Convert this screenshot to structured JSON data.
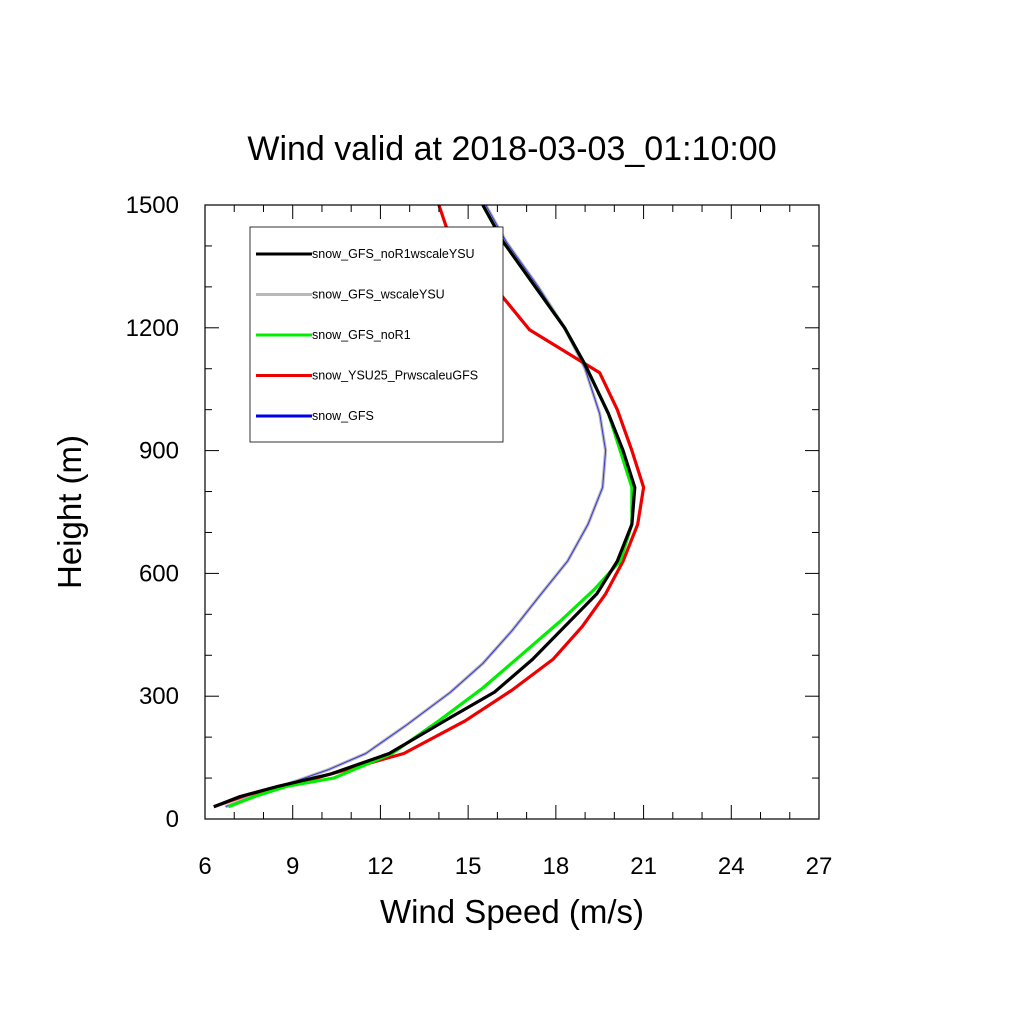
{
  "chart_data": {
    "type": "line",
    "title": "Wind valid at 2018-03-03_01:10:00",
    "xlabel": "Wind Speed (m/s)",
    "ylabel": "Height (m)",
    "xlim": [
      6,
      27
    ],
    "ylim": [
      0,
      1500
    ],
    "xticks": [
      "6",
      "9",
      "12",
      "15",
      "18",
      "21",
      "24",
      "27"
    ],
    "yticks": [
      "0",
      "300",
      "600",
      "900",
      "1200",
      "1500"
    ],
    "legend_position": "top-left",
    "grid": false,
    "series": [
      {
        "name": "snow_GFS_noR1wscaleYSU",
        "color": "#000000",
        "points": [
          [
            6.3,
            30
          ],
          [
            7.2,
            55
          ],
          [
            8.5,
            80
          ],
          [
            10.3,
            110
          ],
          [
            12.3,
            160
          ],
          [
            14.2,
            240
          ],
          [
            15.9,
            310
          ],
          [
            17.2,
            390
          ],
          [
            18.3,
            470
          ],
          [
            19.4,
            550
          ],
          [
            20.1,
            630
          ],
          [
            20.6,
            720
          ],
          [
            20.7,
            810
          ],
          [
            20.3,
            900
          ],
          [
            19.8,
            990
          ],
          [
            19.0,
            1110
          ],
          [
            18.3,
            1200
          ],
          [
            17.3,
            1300
          ],
          [
            16.2,
            1410
          ],
          [
            15.5,
            1500
          ]
        ]
      },
      {
        "name": "snow_GFS_wscaleYSU",
        "color": "#b8b8b8",
        "points": [
          [
            6.7,
            30
          ],
          [
            7.6,
            55
          ],
          [
            9.0,
            90
          ],
          [
            10.2,
            120
          ],
          [
            11.5,
            160
          ],
          [
            12.9,
            230
          ],
          [
            14.4,
            310
          ],
          [
            15.5,
            380
          ],
          [
            16.5,
            460
          ],
          [
            17.5,
            550
          ],
          [
            18.4,
            630
          ],
          [
            19.1,
            720
          ],
          [
            19.6,
            810
          ],
          [
            19.7,
            900
          ],
          [
            19.5,
            990
          ],
          [
            19.0,
            1100
          ],
          [
            18.3,
            1200
          ],
          [
            17.4,
            1300
          ],
          [
            16.3,
            1410
          ],
          [
            15.6,
            1500
          ]
        ]
      },
      {
        "name": "snow_GFS_noR1",
        "color": "#00ee00",
        "points": [
          [
            6.8,
            30
          ],
          [
            7.7,
            55
          ],
          [
            8.8,
            80
          ],
          [
            10.4,
            100
          ],
          [
            12.4,
            160
          ],
          [
            14.0,
            240
          ],
          [
            15.5,
            320
          ],
          [
            16.8,
            400
          ],
          [
            18.1,
            480
          ],
          [
            19.3,
            560
          ],
          [
            20.2,
            630
          ],
          [
            20.6,
            720
          ],
          [
            20.6,
            810
          ],
          [
            20.2,
            900
          ],
          [
            19.8,
            990
          ],
          [
            19.0,
            1110
          ],
          [
            18.3,
            1200
          ],
          [
            17.3,
            1300
          ],
          [
            16.2,
            1410
          ],
          [
            15.5,
            1500
          ]
        ]
      },
      {
        "name": "snow_YSU25_PrwscaleuGFS",
        "color": "#ee0000",
        "points": [
          [
            6.3,
            30
          ],
          [
            7.5,
            60
          ],
          [
            9.3,
            90
          ],
          [
            10.8,
            120
          ],
          [
            12.8,
            160
          ],
          [
            14.9,
            240
          ],
          [
            16.5,
            315
          ],
          [
            17.9,
            390
          ],
          [
            18.9,
            470
          ],
          [
            19.7,
            550
          ],
          [
            20.3,
            630
          ],
          [
            20.8,
            720
          ],
          [
            21.0,
            810
          ],
          [
            20.6,
            900
          ],
          [
            20.1,
            1000
          ],
          [
            19.5,
            1090
          ],
          [
            17.1,
            1195
          ],
          [
            15.9,
            1300
          ],
          [
            14.4,
            1415
          ],
          [
            14.0,
            1500
          ]
        ]
      },
      {
        "name": "snow_GFS",
        "color": "#0000ee",
        "points": [
          [
            6.7,
            30
          ],
          [
            7.6,
            55
          ],
          [
            9.0,
            90
          ],
          [
            10.2,
            120
          ],
          [
            11.5,
            160
          ],
          [
            12.9,
            230
          ],
          [
            14.4,
            310
          ],
          [
            15.5,
            380
          ],
          [
            16.5,
            460
          ],
          [
            17.5,
            550
          ],
          [
            18.4,
            630
          ],
          [
            19.1,
            720
          ],
          [
            19.6,
            810
          ],
          [
            19.7,
            900
          ],
          [
            19.5,
            990
          ],
          [
            19.0,
            1100
          ],
          [
            18.3,
            1200
          ],
          [
            17.4,
            1300
          ],
          [
            16.3,
            1410
          ],
          [
            15.6,
            1500
          ]
        ]
      }
    ]
  }
}
